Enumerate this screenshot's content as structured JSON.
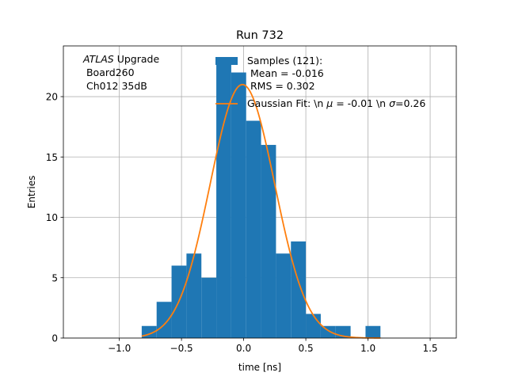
{
  "chart_data": {
    "type": "bar",
    "title": "Run 732",
    "xlabel": "time [ns]",
    "ylabel": "Entries",
    "xlim": [
      -1.45,
      1.71
    ],
    "ylim": [
      0,
      24.2
    ],
    "grid": true,
    "xticks": [
      -1.0,
      -0.5,
      0.0,
      0.5,
      1.0,
      1.5
    ],
    "xtick_labels": [
      "−1.0",
      "−0.5",
      "0.0",
      "0.5",
      "1.0",
      "1.5"
    ],
    "yticks": [
      0,
      5,
      10,
      15,
      20
    ],
    "ytick_labels": [
      "0",
      "5",
      "10",
      "15",
      "20"
    ],
    "bin_edges": [
      -0.82,
      -0.7,
      -0.58,
      -0.46,
      -0.34,
      -0.22,
      -0.1,
      0.02,
      0.14,
      0.26,
      0.38,
      0.5,
      0.62,
      0.74,
      0.86,
      0.98,
      1.1
    ],
    "counts": [
      1,
      3,
      6,
      7,
      5,
      23,
      22,
      18,
      16,
      7,
      8,
      2,
      1,
      1,
      0,
      1
    ],
    "bar_color": "#1f77b4",
    "fit": {
      "label": "Gaussian Fit: \\n $\\mu$ = -0.01 \\n $\\sigma$=0.26",
      "label_prefix": "Gaussian Fit: \\n ",
      "mu_symbol": "μ",
      "label_middle": " = -0.01 \\n ",
      "sigma_symbol": "σ",
      "label_suffix": "=0.26",
      "mu": -0.01,
      "sigma": 0.26,
      "amplitude": 21.0,
      "color": "#ff7f0e"
    },
    "legend": {
      "samples_line": "Samples (121):",
      "mean_line": " Mean = -0.016",
      "rms_line": " RMS = 0.302",
      "placement": "top-right"
    },
    "annotation": {
      "atlas": "ATLAS",
      "upgrade": " Upgrade",
      "board": " Board260",
      "channel": " Ch012 35dB",
      "placement": "top-left"
    }
  }
}
